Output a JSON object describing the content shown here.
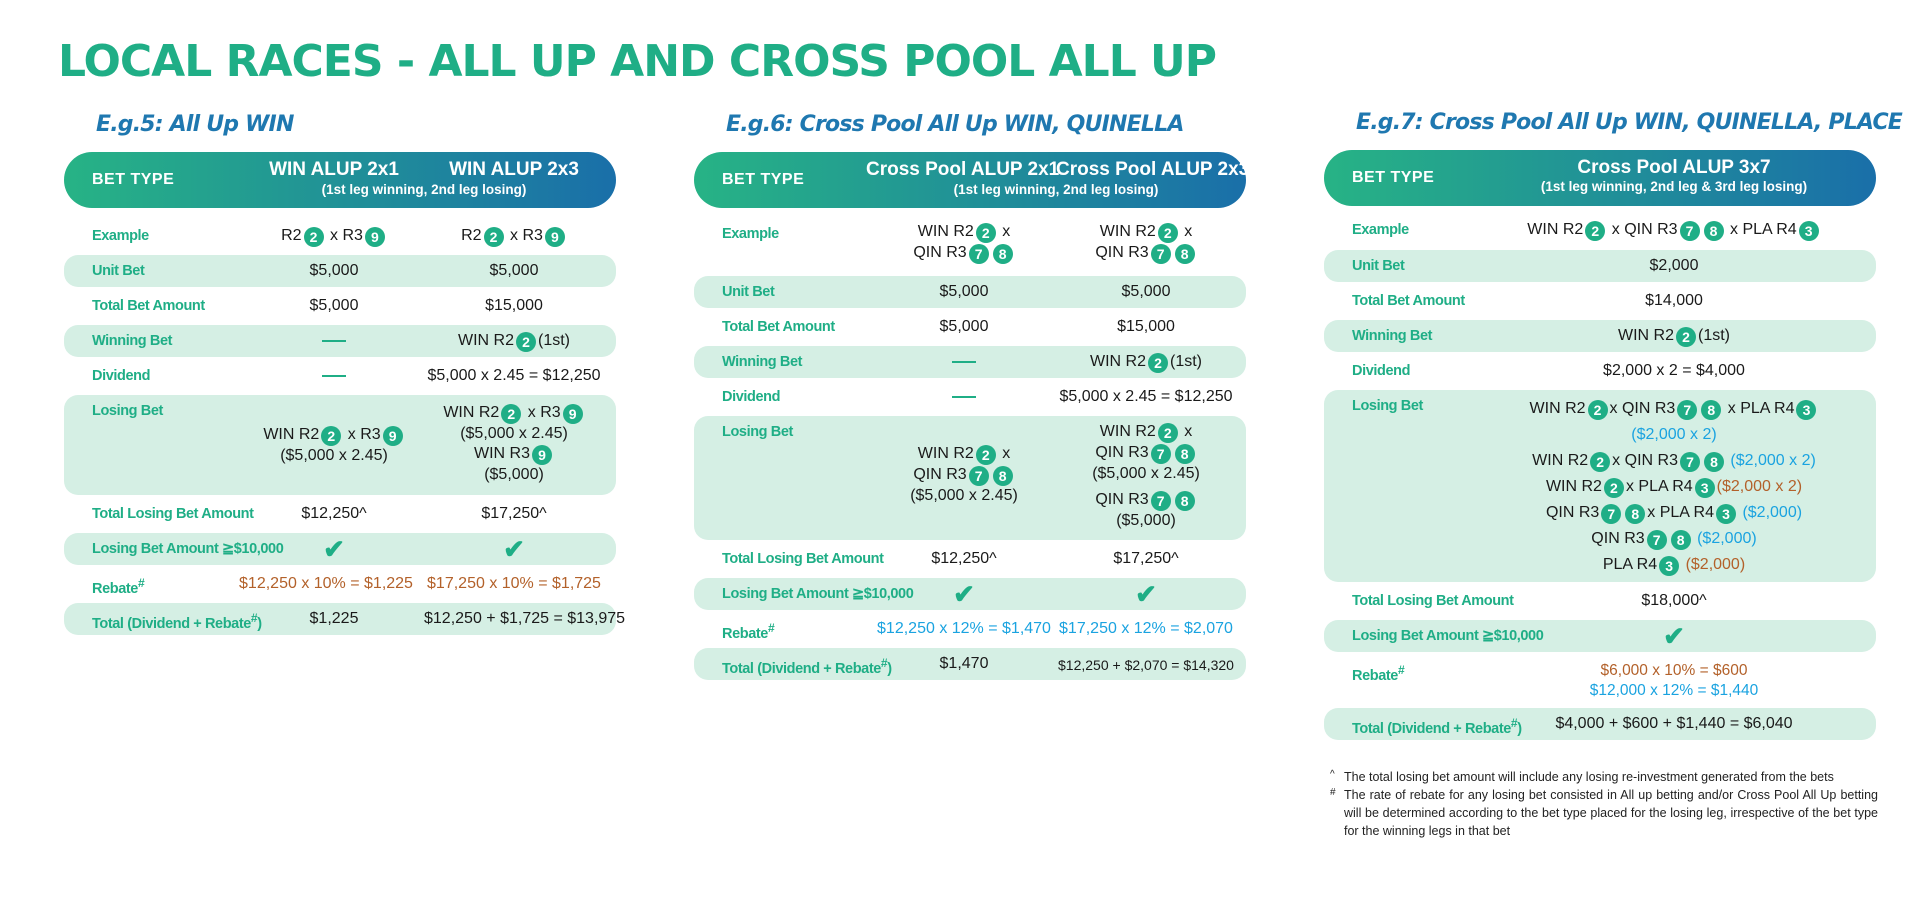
{
  "title": "LOCAL RACES - ALL UP AND CROSS POOL ALL UP",
  "header_label": "BET TYPE",
  "labels": {
    "example": "Example",
    "unit_bet": "Unit Bet",
    "total_bet": "Total Bet Amount",
    "winning_bet": "Winning Bet",
    "dividend": "Dividend",
    "losing_bet": "Losing Bet",
    "total_losing": "Total Losing Bet Amount",
    "threshold": "Losing Bet Amount ≧$10,000",
    "rebate": "Rebate",
    "rebate_mark": "#",
    "total_a": "Total (Dividend + Rebate",
    "total_mark": "#",
    "total_b": ")"
  },
  "eg5": {
    "heading": "E.g.5: All Up WIN",
    "col1_title": "WIN ALUP 2x1",
    "col2_title": "WIN ALUP 2x3",
    "sub": "(1st leg winning, 2nd leg losing)",
    "r2": "R2",
    "x": "x",
    "r3": "R3",
    "n2": "2",
    "n9": "9",
    "unit1": "$5,000",
    "unit2": "$5,000",
    "total1": "$5,000",
    "total2": "$15,000",
    "win2_pre": "WIN  R2",
    "win2_post": "(1st)",
    "div2": "$5,000 x 2.45 = $12,250",
    "lose1_a": "WIN  R2",
    "lose1_b": "($5,000 x 2.45)",
    "lose2_a": "WIN  R2",
    "lose2_b": "($5,000 x 2.45)",
    "lose2_c": "WIN  R3",
    "lose2_d": "($5,000)",
    "tl1": "$12,250^",
    "tl2": "$17,250^",
    "reb1": "$12,250 x 10% = $1,225",
    "reb2": "$17,250 x 10% = $1,725",
    "tot1": "$1,225",
    "tot2": "$12,250 + $1,725 = $13,975"
  },
  "eg6": {
    "heading": "E.g.6: Cross Pool All Up WIN, QUINELLA",
    "col1_title": "Cross Pool ALUP 2x1",
    "col2_title": "Cross Pool ALUP 2x3",
    "sub": "(1st  leg winning, 2nd leg losing)",
    "win": "WIN  R2",
    "x": "x",
    "qin": "QIN  R3",
    "n2": "2",
    "n7": "7",
    "n8": "8",
    "unit1": "$5,000",
    "unit2": "$5,000",
    "total1": "$5,000",
    "total2": "$15,000",
    "win2_pre": "WIN  R2",
    "win2_post": "(1st)",
    "div2": "$5,000 x 2.45 = $12,250",
    "lose1_c": "($5,000 x 2.45)",
    "lose2_c": "($5,000 x 2.45)",
    "lose2_e": "($5,000)",
    "tl1": "$12,250^",
    "tl2": "$17,250^",
    "reb1": "$12,250 x 12% = $1,470",
    "reb2": "$17,250 x 12% = $2,070",
    "tot1": "$1,470",
    "tot2": "$12,250 + $2,070 = $14,320"
  },
  "eg7": {
    "heading": "E.g.7: Cross Pool All Up WIN, QUINELLA, PLACE",
    "col_title": "Cross Pool ALUP 3x7",
    "sub": "(1st leg winning, 2nd leg & 3rd leg losing)",
    "win": "WIN R2",
    "x": "x",
    "qin": "QIN R3",
    "pla": "PLA R4",
    "n2": "2",
    "n7": "7",
    "n8": "8",
    "n3": "3",
    "unit": "$2,000",
    "total": "$14,000",
    "win_pre": "WIN  R2",
    "win_post": "(1st)",
    "div": "$2,000 x 2 = $4,000",
    "amt_22": "($2,000 x 2)",
    "amt_22o": "($2,000 x 2)",
    "amt_1": "($2,000)",
    "tl": "$18,000^",
    "reb1": "$6,000 x 10% = $600",
    "reb2": "$12,000 x 12% = $1,440",
    "tot": "$4,000 + $600 + $1,440 = $6,040"
  },
  "notes": {
    "m1": "^",
    "n1": "The total losing bet amount will include any losing re-investment generated from the bets",
    "m2": "#",
    "n2": "The rate of rebate for any losing bet consisted in All up betting and/or Cross Pool All Up betting will be determined according to the bet type placed for the losing leg, irrespective of the bet type for the winning legs in that bet"
  },
  "colors": {
    "green": "#1fae86",
    "band": "#d5efe4",
    "blue": "#1aa3e0",
    "orange": "#b3612a",
    "header_end": "#1a6fa9"
  }
}
